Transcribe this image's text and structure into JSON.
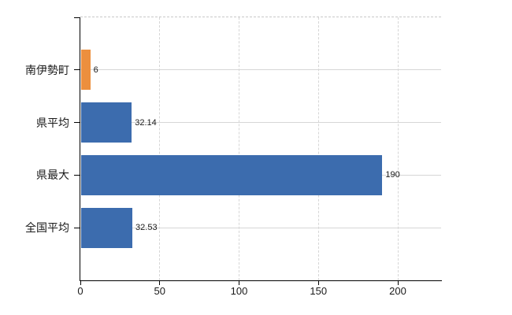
{
  "chart_data": {
    "type": "bar",
    "orientation": "horizontal",
    "title": "",
    "xlabel": "",
    "ylabel": "",
    "categories": [
      "南伊勢町",
      "県平均",
      "県最大",
      "全国平均"
    ],
    "values": [
      6,
      32.14,
      190,
      32.53
    ],
    "data_labels": [
      "6",
      "32.14",
      "190",
      "32.53"
    ],
    "bar_colors": [
      "#ec8f3e",
      "#3c6cae",
      "#3c6cae",
      "#3c6cae"
    ],
    "x_tick_labels": [
      "0",
      "50",
      "100",
      "150",
      "200"
    ],
    "x_tick_values": [
      0,
      50,
      100,
      150,
      200
    ],
    "xlim": [
      0,
      227
    ],
    "grid": true,
    "legend": false,
    "colors": {
      "bar_blue": "#3c6cae",
      "bar_orange": "#ec8f3e",
      "grid": "#d6d6d6",
      "top_border": "#c9c9c9",
      "axis": "#000000",
      "text": "#1a1a1a",
      "background": "#ffffff"
    }
  }
}
